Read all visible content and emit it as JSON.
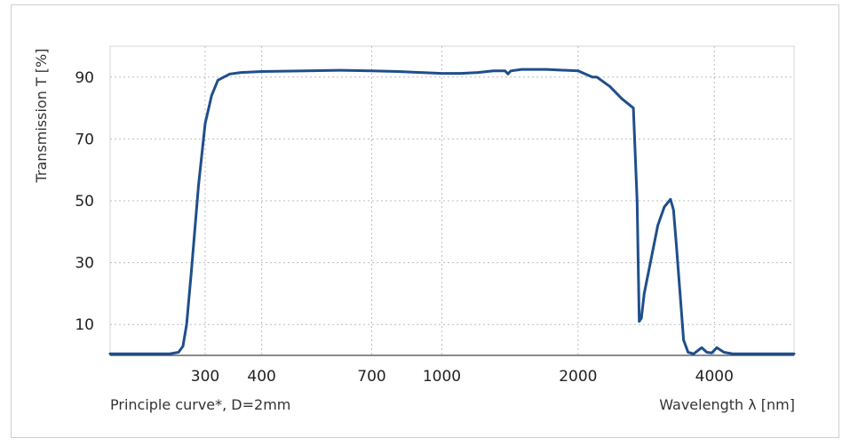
{
  "chart_data": {
    "type": "line",
    "xlabel": "Wavelength λ [nm]",
    "ylabel": "Transmission T [%]",
    "caption": "Principle curve*, D=2mm",
    "x_scale": "log",
    "xlim": [
      185,
      6000
    ],
    "ylim": [
      0,
      100
    ],
    "x_ticks": [
      300,
      400,
      700,
      1000,
      2000,
      4000
    ],
    "x_tick_labels": [
      "300",
      "400",
      "700",
      "1000",
      "2000",
      "4000"
    ],
    "y_ticks": [
      10,
      30,
      50,
      70,
      90
    ],
    "y_tick_labels": [
      "10",
      "30",
      "50",
      "70",
      "90"
    ],
    "grid": true,
    "line_color": "#1f4e8c",
    "series": [
      {
        "x": [
          185,
          250,
          262,
          268,
          273,
          280,
          290,
          300,
          310,
          320,
          340,
          360,
          400,
          500,
          600,
          700,
          800,
          900,
          1000,
          1100,
          1200,
          1300,
          1380,
          1400,
          1420,
          1500,
          1700,
          2000,
          2150,
          2200,
          2350,
          2500,
          2650,
          2700,
          2730,
          2760,
          2800,
          3000,
          3100,
          3200,
          3250,
          3300,
          3380,
          3420,
          3500,
          3600,
          3750,
          3850,
          3950,
          4050,
          4200,
          4400,
          6000
        ],
        "y": [
          0.5,
          0.5,
          1,
          3,
          10,
          28,
          55,
          75,
          84,
          89,
          91,
          91.5,
          91.8,
          92,
          92.2,
          92,
          91.8,
          91.5,
          91.2,
          91.2,
          91.5,
          92,
          92,
          91,
          92,
          92.5,
          92.5,
          92,
          90,
          90,
          87,
          83,
          80,
          50,
          11,
          12,
          20,
          42,
          48,
          50.5,
          47,
          35,
          15,
          5,
          1,
          0.5,
          2.5,
          1,
          0.8,
          2.5,
          1,
          0.5,
          0.5
        ]
      }
    ]
  }
}
